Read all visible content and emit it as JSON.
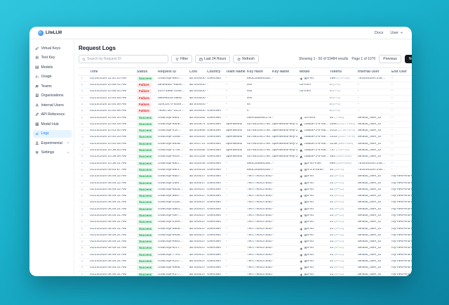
{
  "app": {
    "logo_text": "LiteLLM"
  },
  "topbar": {
    "docs": "Docs",
    "user": "User"
  },
  "sidebar": {
    "items": [
      {
        "label": "Virtual Keys",
        "icon": "key-icon",
        "active": false,
        "group": false
      },
      {
        "label": "Test Key",
        "icon": "play-circle-icon",
        "active": false,
        "group": false
      },
      {
        "label": "Models",
        "icon": "block-icon",
        "active": false,
        "group": false
      },
      {
        "label": "Usage",
        "icon": "bar-chart-icon",
        "active": false,
        "group": false
      },
      {
        "label": "Teams",
        "icon": "team-icon",
        "active": false,
        "group": false
      },
      {
        "label": "Organizations",
        "icon": "bank-icon",
        "active": false,
        "group": false
      },
      {
        "label": "Internal Users",
        "icon": "user-icon",
        "active": false,
        "group": false
      },
      {
        "label": "API Reference",
        "icon": "api-icon",
        "active": false,
        "group": false
      },
      {
        "label": "Model Hub",
        "icon": "appstore-icon",
        "active": false,
        "group": false
      },
      {
        "label": "Logs",
        "icon": "line-chart-icon",
        "active": true,
        "group": false
      },
      {
        "label": "Experimental",
        "icon": "experiment-icon",
        "active": false,
        "group": true
      },
      {
        "label": "Settings",
        "icon": "settings-gear-icon",
        "active": false,
        "group": true
      }
    ]
  },
  "main": {
    "title": "Request Logs",
    "search_placeholder": "Search by Request ID",
    "buttons": {
      "filter": "Filter",
      "time_range": "Last 24 Hours",
      "refresh": "Refresh"
    },
    "pagination": {
      "showing": "Showing 1 - 50 of 53484 results",
      "page": "Page 1 of 1070",
      "previous": "Previous",
      "next": "Next"
    }
  },
  "table": {
    "columns": [
      "Time",
      "Status",
      "Request ID",
      "Cost",
      "Country",
      "Team Name",
      "Key Hash",
      "Key Name",
      "Model",
      "Tokens",
      "Internal User",
      "End User"
    ],
    "rows": [
      {
        "expanded": false,
        "time": "01/15/2025 11:02:10 AM",
        "status": "Success",
        "request_id": "chatcmpl-8807…",
        "cost": "$0.000000",
        "country": "Unknown",
        "team": "-",
        "key_hash": "88dc28d8f830b…",
        "key_name": "-",
        "model": "gpt-4o",
        "provider": "openai",
        "tokens": "198",
        "tokens_detail": "(172+26)",
        "internal_user": "7934481087248…",
        "end_user": "-"
      },
      {
        "expanded": false,
        "time": "01/23/2025 10:55:42 AM",
        "status": "Failure",
        "request_id": "d84ed5a7-eb08…",
        "cost": "$0.000000",
        "country": "-",
        "team": "-",
        "key_hash": "sss",
        "key_name": "",
        "model": "o3-mini",
        "provider": "",
        "tokens": "0",
        "tokens_detail": "(0+0)",
        "internal_user": "-",
        "end_user": "-"
      },
      {
        "expanded": false,
        "time": "01/23/2025 10:55:00 AM",
        "status": "Failure",
        "request_id": "43474a9b-3188…",
        "cost": "$0.000000",
        "country": "-",
        "team": "-",
        "key_hash": "sss",
        "key_name": "",
        "model": "o3-mini",
        "provider": "",
        "tokens": "0",
        "tokens_detail": "(0+0)",
        "internal_user": "-",
        "end_user": "-"
      },
      {
        "expanded": false,
        "time": "01/23/2025 10:54:59 AM",
        "status": "Failure",
        "request_id": "a9ee681d-b868…",
        "cost": "$0.000000",
        "country": "-",
        "team": "-",
        "key_hash": "sss",
        "key_name": "",
        "model": "",
        "provider": "",
        "tokens": "0",
        "tokens_detail": "(0+0)",
        "internal_user": "-",
        "end_user": "-"
      },
      {
        "expanded": false,
        "time": "01/23/2025 10:54:59 AM",
        "status": "Failure",
        "request_id": "334c1874-4b4e…",
        "cost": "$0.000000",
        "country": "-",
        "team": "-",
        "key_hash": "ss",
        "key_name": "",
        "model": "",
        "provider": "",
        "tokens": "0",
        "tokens_detail": "(0+0)",
        "internal_user": "-",
        "end_user": "-"
      },
      {
        "expanded": false,
        "time": "01/23/2025 10:54:58 AM",
        "status": "Failure",
        "request_id": "7eb67387-bcc2…",
        "cost": "$0.000000",
        "country": "Unknown",
        "team": "-",
        "key_hash": "s",
        "key_name": "",
        "model": "",
        "provider": "",
        "tokens": "0",
        "tokens_detail": "(0+0)",
        "internal_user": "-",
        "end_user": "-"
      },
      {
        "expanded": false,
        "time": "01/23/2025 10:54:34 AM",
        "status": "Success",
        "request_id": "chatcmpl-b8fa…",
        "cost": "$0.000382",
        "country": "Unknown",
        "team": "-",
        "key_hash": "06ec5a2eac17a…",
        "key_name": "-",
        "model": "o3-mini",
        "provider": "openai",
        "tokens": "92",
        "tokens_detail": "(7+85)",
        "internal_user": "default_user_id",
        "end_user": "-"
      },
      {
        "expanded": false,
        "time": "01/23/2025 10:45:49 AM",
        "status": "Success",
        "request_id": "chatcmpl-ebbe…",
        "cost": "$0.003574",
        "country": "Unknown",
        "team": "openwebui",
        "key_hash": "4b7651c6cf795…",
        "key_name": "openwebui-key-2",
        "model": "claude-3-5-hai…",
        "provider": "anthropic",
        "tokens": "2580",
        "tokens_detail": "(2127+453)",
        "internal_user": "default_user_id",
        "end_user": "-"
      },
      {
        "expanded": false,
        "time": "01/23/2025 10:43:00 AM",
        "status": "Success",
        "request_id": "chatcmpl-41ff…",
        "cost": "$0.002868",
        "country": "Unknown",
        "team": "openwebui",
        "key_hash": "4b7651c6cf795…",
        "key_name": "openwebui-key-2",
        "model": "claude-3-5-hai…",
        "provider": "anthropic",
        "tokens": "2102",
        "tokens_detail": "(1732+370)",
        "internal_user": "default_user_id",
        "end_user": "-"
      },
      {
        "expanded": true,
        "time": "01/23/2025 10:40:33 AM",
        "status": "Success",
        "request_id": "chatcmpl-1058…",
        "cost": "$0.002030",
        "country": "Unknown",
        "team": "openwebui",
        "key_hash": "4b7651c6cf795…",
        "key_name": "openwebui-key-2",
        "model": "claude-3-5-hai…",
        "provider": "anthropic",
        "tokens": "1433",
        "tokens_detail": "(1157+276)",
        "internal_user": "default_user_id",
        "end_user": "-"
      },
      {
        "expanded": true,
        "time": "01/23/2025 10:40:08 AM",
        "status": "Success",
        "request_id": "chatcmpl-883a…",
        "cost": "$0.001714",
        "country": "Unknown",
        "team": "openwebui",
        "key_hash": "4b7651c6cf795…",
        "key_name": "openwebui-key-2",
        "model": "claude-3-5-hai…",
        "provider": "anthropic",
        "tokens": "1139",
        "tokens_detail": "(885+254)",
        "internal_user": "default_user_id",
        "end_user": "-"
      },
      {
        "expanded": false,
        "time": "01/23/2025 10:39:53 AM",
        "status": "Success",
        "request_id": "chatcmpl-1748…",
        "cost": "$0.000055",
        "country": "Unknown",
        "team": "openwebui",
        "key_hash": "4b7651c6cf795…",
        "key_name": "openwebui-key-2",
        "model": "claude-3-5-hai…",
        "provider": "anthropic",
        "tokens": "727",
        "tokens_detail": "(704+23)",
        "internal_user": "default_user_id",
        "end_user": "-"
      },
      {
        "expanded": false,
        "time": "01/23/2025 10:39:46 AM",
        "status": "Success",
        "request_id": "chatcmpl-exce…",
        "cost": "$0.001336",
        "country": "Unknown",
        "team": "openwebui",
        "key_hash": "4b7651c6cf795…",
        "key_name": "openwebui-key-2",
        "model": "claude-3-5-hai…",
        "provider": "anthropic",
        "tokens": "482",
        "tokens_detail": "(180+302)",
        "internal_user": "default_user_id",
        "end_user": "-"
      },
      {
        "expanded": false,
        "time": "01/23/2025 10:38:41 AM",
        "status": "Success",
        "request_id": "chatcmpl-88f1…",
        "cost": "$0.000445",
        "country": "Unknown",
        "team": "-",
        "key_hash": "88dc28d8f830b…",
        "key_name": "-",
        "model": "gpt-4o-mini",
        "provider": "openai",
        "tokens": "889",
        "tokens_detail": "(209+680)",
        "internal_user": "7934481087248…",
        "end_user": "-"
      },
      {
        "expanded": false,
        "time": "01/23/2025 09:53:57 AM",
        "status": "Success",
        "request_id": "chatcmpl-88f3…",
        "cost": "$0.000025",
        "country": "Unknown",
        "team": "-",
        "key_hash": "88dc28d8f830b…",
        "key_name": "-",
        "model": "gpt-3.5-turbo",
        "provider": "openai",
        "tokens": "44",
        "tokens_detail": "(40+4)",
        "internal_user": "7934481087248…",
        "end_user": "-"
      },
      {
        "expanded": false,
        "time": "01/23/2025 08:49:32 AM",
        "status": "Success",
        "request_id": "chatcmpl-6db7…",
        "cost": "$0.000037",
        "country": "Unknown",
        "team": "-",
        "key_hash": "7907790437a4d…",
        "key_name": "-",
        "model": "gpt-4o",
        "provider": "openai",
        "tokens": "21",
        "tokens_detail": "(9+12)",
        "internal_user": "default_user_id",
        "end_user": "my-new-end-user-1"
      },
      {
        "expanded": false,
        "time": "01/23/2025 08:49:32 AM",
        "status": "Success",
        "request_id": "chatcmpl-2d8f…",
        "cost": "$0.000037",
        "country": "Unknown",
        "team": "-",
        "key_hash": "7907790437a4d…",
        "key_name": "-",
        "model": "gpt-4o",
        "provider": "openai",
        "tokens": "21",
        "tokens_detail": "(9+12)",
        "internal_user": "default_user_id",
        "end_user": "my-new-end-user-1"
      },
      {
        "expanded": false,
        "time": "01/23/2025 08:49:32 AM",
        "status": "Success",
        "request_id": "chatcmpl-d52a…",
        "cost": "$0.000037",
        "country": "Unknown",
        "team": "-",
        "key_hash": "7907790437a4d…",
        "key_name": "-",
        "model": "gpt-4o",
        "provider": "openai",
        "tokens": "21",
        "tokens_detail": "(9+12)",
        "internal_user": "default_user_id",
        "end_user": "my-new-end-user-1"
      },
      {
        "expanded": false,
        "time": "01/23/2025 08:49:31 AM",
        "status": "Success",
        "request_id": "chatcmpl-a887…",
        "cost": "$0.000037",
        "country": "Unknown",
        "team": "-",
        "key_hash": "7907790437a4d…",
        "key_name": "-",
        "model": "gpt-4o",
        "provider": "openai",
        "tokens": "21",
        "tokens_detail": "(9+12)",
        "internal_user": "default_user_id",
        "end_user": "my-new-end-user-1"
      },
      {
        "expanded": false,
        "time": "01/23/2025 08:49:31 AM",
        "status": "Success",
        "request_id": "chatcmpl-cd3b…",
        "cost": "$0.000037",
        "country": "Unknown",
        "team": "-",
        "key_hash": "7907790437a4d…",
        "key_name": "-",
        "model": "gpt-4o",
        "provider": "openai",
        "tokens": "21",
        "tokens_detail": "(9+12)",
        "internal_user": "default_user_id",
        "end_user": "my-new-end-user-1"
      },
      {
        "expanded": false,
        "time": "01/23/2025 08:49:31 AM",
        "status": "Success",
        "request_id": "chatcmpl-da61…",
        "cost": "$0.000037",
        "country": "Unknown",
        "team": "-",
        "key_hash": "7907790437a4d…",
        "key_name": "-",
        "model": "gpt-4o",
        "provider": "openai",
        "tokens": "21",
        "tokens_detail": "(9+12)",
        "internal_user": "default_user_id",
        "end_user": "my-new-end-user-1"
      },
      {
        "expanded": false,
        "time": "01/23/2025 08:49:31 AM",
        "status": "Success",
        "request_id": "chatcmpl-f5e7…",
        "cost": "$0.000037",
        "country": "Unknown",
        "team": "-",
        "key_hash": "7907790437a4d…",
        "key_name": "-",
        "model": "gpt-4o",
        "provider": "openai",
        "tokens": "21",
        "tokens_detail": "(9+12)",
        "internal_user": "default_user_id",
        "end_user": "my-new-end-user-1"
      },
      {
        "expanded": false,
        "time": "01/23/2025 08:49:31 AM",
        "status": "Success",
        "request_id": "chatcmpl-43e9…",
        "cost": "$0.000037",
        "country": "Unknown",
        "team": "-",
        "key_hash": "7907790437a4d…",
        "key_name": "-",
        "model": "gpt-4o",
        "provider": "openai",
        "tokens": "21",
        "tokens_detail": "(9+12)",
        "internal_user": "default_user_id",
        "end_user": "my-new-end-user-1"
      },
      {
        "expanded": false,
        "time": "01/23/2025 08:49:31 AM",
        "status": "Success",
        "request_id": "chatcmpl-d865…",
        "cost": "$0.000037",
        "country": "Unknown",
        "team": "-",
        "key_hash": "7907790437a4d…",
        "key_name": "-",
        "model": "gpt-4o",
        "provider": "openai",
        "tokens": "21",
        "tokens_detail": "(9+12)",
        "internal_user": "default_user_id",
        "end_user": "my-new-end-user-1"
      },
      {
        "expanded": false,
        "time": "01/23/2025 08:49:31 AM",
        "status": "Success",
        "request_id": "chatcmpl-5ed8…",
        "cost": "$0.000037",
        "country": "Unknown",
        "team": "-",
        "key_hash": "7907790437a4d…",
        "key_name": "-",
        "model": "gpt-4o",
        "provider": "openai",
        "tokens": "21",
        "tokens_detail": "(9+12)",
        "internal_user": "default_user_id",
        "end_user": "my-new-end-user-1"
      },
      {
        "expanded": false,
        "time": "01/23/2025 08:49:31 AM",
        "status": "Success",
        "request_id": "chatcmpl-e891…",
        "cost": "$0.000037",
        "country": "Unknown",
        "team": "-",
        "key_hash": "7907790437a4d…",
        "key_name": "-",
        "model": "gpt-4o",
        "provider": "openai",
        "tokens": "21",
        "tokens_detail": "(9+12)",
        "internal_user": "default_user_id",
        "end_user": "my-new-end-user-1"
      },
      {
        "expanded": false,
        "time": "01/23/2025 08:49:31 AM",
        "status": "Success",
        "request_id": "chatcmpl-6cc7…",
        "cost": "$0.000037",
        "country": "Unknown",
        "team": "-",
        "key_hash": "7907790437a4d…",
        "key_name": "-",
        "model": "gpt-4o",
        "provider": "openai",
        "tokens": "21",
        "tokens_detail": "(9+12)",
        "internal_user": "default_user_id",
        "end_user": "my-new-end-user-1"
      },
      {
        "expanded": false,
        "time": "01/23/2025 08:49:31 AM",
        "status": "Success",
        "request_id": "chatcmpl-77e1…",
        "cost": "$0.000037",
        "country": "Unknown",
        "team": "-",
        "key_hash": "7907790437a4d…",
        "key_name": "-",
        "model": "gpt-4o",
        "provider": "openai",
        "tokens": "21",
        "tokens_detail": "(9+12)",
        "internal_user": "default_user_id",
        "end_user": "my-new-end-user-1"
      },
      {
        "expanded": false,
        "time": "01/23/2025 08:49:31 AM",
        "status": "Success",
        "request_id": "chatcmpl-6147…",
        "cost": "$0.000037",
        "country": "Unknown",
        "team": "-",
        "key_hash": "7907790437a4d…",
        "key_name": "-",
        "model": "gpt-4o",
        "provider": "openai",
        "tokens": "21",
        "tokens_detail": "(9+12)",
        "internal_user": "default_user_id",
        "end_user": "my-new-end-user-1"
      },
      {
        "expanded": false,
        "time": "01/23/2025 08:49:31 AM",
        "status": "Success",
        "request_id": "chatcmpl-8968…",
        "cost": "$0.000037",
        "country": "Unknown",
        "team": "-",
        "key_hash": "7907790437a4d…",
        "key_name": "-",
        "model": "gpt-4o",
        "provider": "openai",
        "tokens": "21",
        "tokens_detail": "(9+12)",
        "internal_user": "default_user_id",
        "end_user": "my-new-end-user-1"
      },
      {
        "expanded": false,
        "time": "01/23/2025 08:49:31 AM",
        "status": "Success",
        "request_id": "chatcmpl-e377…",
        "cost": "$0.000037",
        "country": "Unknown",
        "team": "-",
        "key_hash": "7907790437a4d…",
        "key_name": "-",
        "model": "gpt-4o",
        "provider": "openai",
        "tokens": "21",
        "tokens_detail": "(9+12)",
        "internal_user": "default_user_id",
        "end_user": "my-new-end-user-1"
      }
    ]
  },
  "colors": {
    "accent_blue": "#1677ff",
    "success_text": "#16a34a",
    "success_bg": "#e4f7ec",
    "failure_text": "#dc2626",
    "failure_bg": "#fdeaea",
    "background_teal": "#1aafca"
  }
}
